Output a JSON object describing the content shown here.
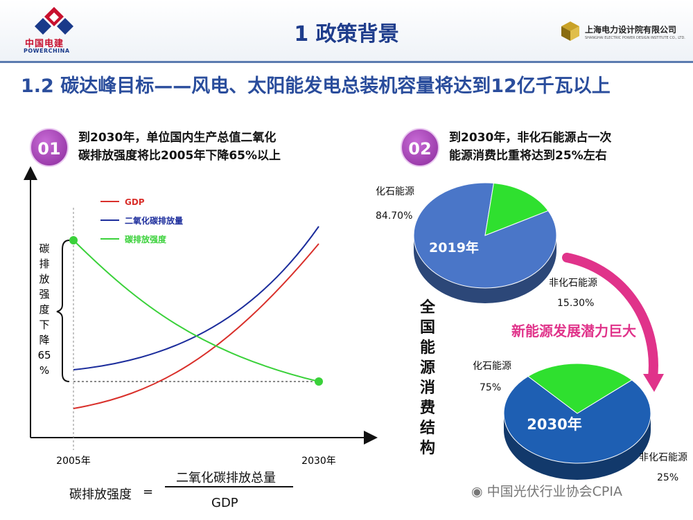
{
  "header": {
    "title": "1 政策背景",
    "logo_left_cn": "中国电建",
    "logo_left_en": "POWERCHINA",
    "logo_right_cn": "上海电力设计院有限公司",
    "logo_right_en": "SHANGHAI ELECTRIC POWER DESIGN INSTITUTE CO., LTD."
  },
  "subtitle": "1.2 碳达峰目标——风电、太阳能发电总装机容量将达到12亿千瓦以上",
  "section1": {
    "badge": "01",
    "text_line1": "到2030年，单位国内生产总值二氧化",
    "text_line2": "碳排放强度将比2005年下降65%以上"
  },
  "section2": {
    "badge": "02",
    "text_line1": "到2030年，非化石能源占一次",
    "text_line2": "能源消费比重将达到25%左右"
  },
  "line_chart": {
    "legend": [
      {
        "name": "GDP",
        "color": "#d9302b"
      },
      {
        "name": "二氧化碳排放量",
        "color": "#1c2d9c"
      },
      {
        "name": "碳排放强度",
        "color": "#3ad13a"
      }
    ],
    "brace_label_chars": [
      "碳",
      "排",
      "放",
      "强",
      "度",
      "下",
      "降",
      "65",
      "%"
    ],
    "x_tick_start": "2005年",
    "x_tick_end": "2030年"
  },
  "formula": {
    "lhs": "碳排放强度",
    "eq": "=",
    "numerator": "二氧化碳排放总量",
    "denominator": "GDP"
  },
  "chart_data": [
    {
      "type": "pie",
      "title": "2019年",
      "slices": [
        {
          "label": "化石能源",
          "value": 84.7,
          "value_text": "84.70%",
          "color": "#4a76c8"
        },
        {
          "label": "非化石能源",
          "value": 15.3,
          "value_text": "15.30%",
          "color": "#2fe02f"
        }
      ]
    },
    {
      "type": "pie",
      "title": "2030年",
      "slices": [
        {
          "label": "化石能源",
          "value": 75,
          "value_text": "75%",
          "color": "#1e5fb3"
        },
        {
          "label": "非化石能源",
          "value": 25,
          "value_text": "25%",
          "color": "#2fe02f"
        }
      ]
    }
  ],
  "vertical_title": [
    "全",
    "国",
    "能",
    "源",
    "消",
    "费",
    "结",
    "构"
  ],
  "arrow_text": "新能源发展潜力巨大",
  "watermark": "中国光伏行业协会CPIA"
}
